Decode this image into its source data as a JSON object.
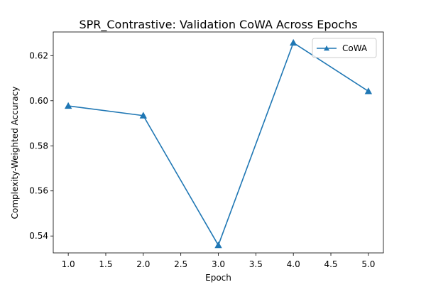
{
  "chart_data": {
    "type": "line",
    "title": "SPR_Contrastive: Validation CoWA Across Epochs",
    "xlabel": "Epoch",
    "ylabel": "Complexity-Weighted Accuracy",
    "xlim": [
      0.8,
      5.2
    ],
    "ylim": [
      0.5325,
      0.6305
    ],
    "x_ticks": [
      1.0,
      1.5,
      2.0,
      2.5,
      3.0,
      3.5,
      4.0,
      4.5,
      5.0
    ],
    "x_tick_labels": [
      "1.0",
      "1.5",
      "2.0",
      "2.5",
      "3.0",
      "3.5",
      "4.0",
      "4.5",
      "5.0"
    ],
    "y_ticks": [
      0.54,
      0.56,
      0.58,
      0.6,
      0.62
    ],
    "y_tick_labels": [
      "0.54",
      "0.56",
      "0.58",
      "0.60",
      "0.62"
    ],
    "grid": false,
    "legend_position": "top-right",
    "series": [
      {
        "name": "CoWA",
        "color": "#1f77b4",
        "marker": "triangle-up",
        "x": [
          1,
          2,
          3,
          4,
          5
        ],
        "y": [
          0.5977,
          0.5934,
          0.5359,
          0.6257,
          0.6042
        ]
      }
    ]
  }
}
